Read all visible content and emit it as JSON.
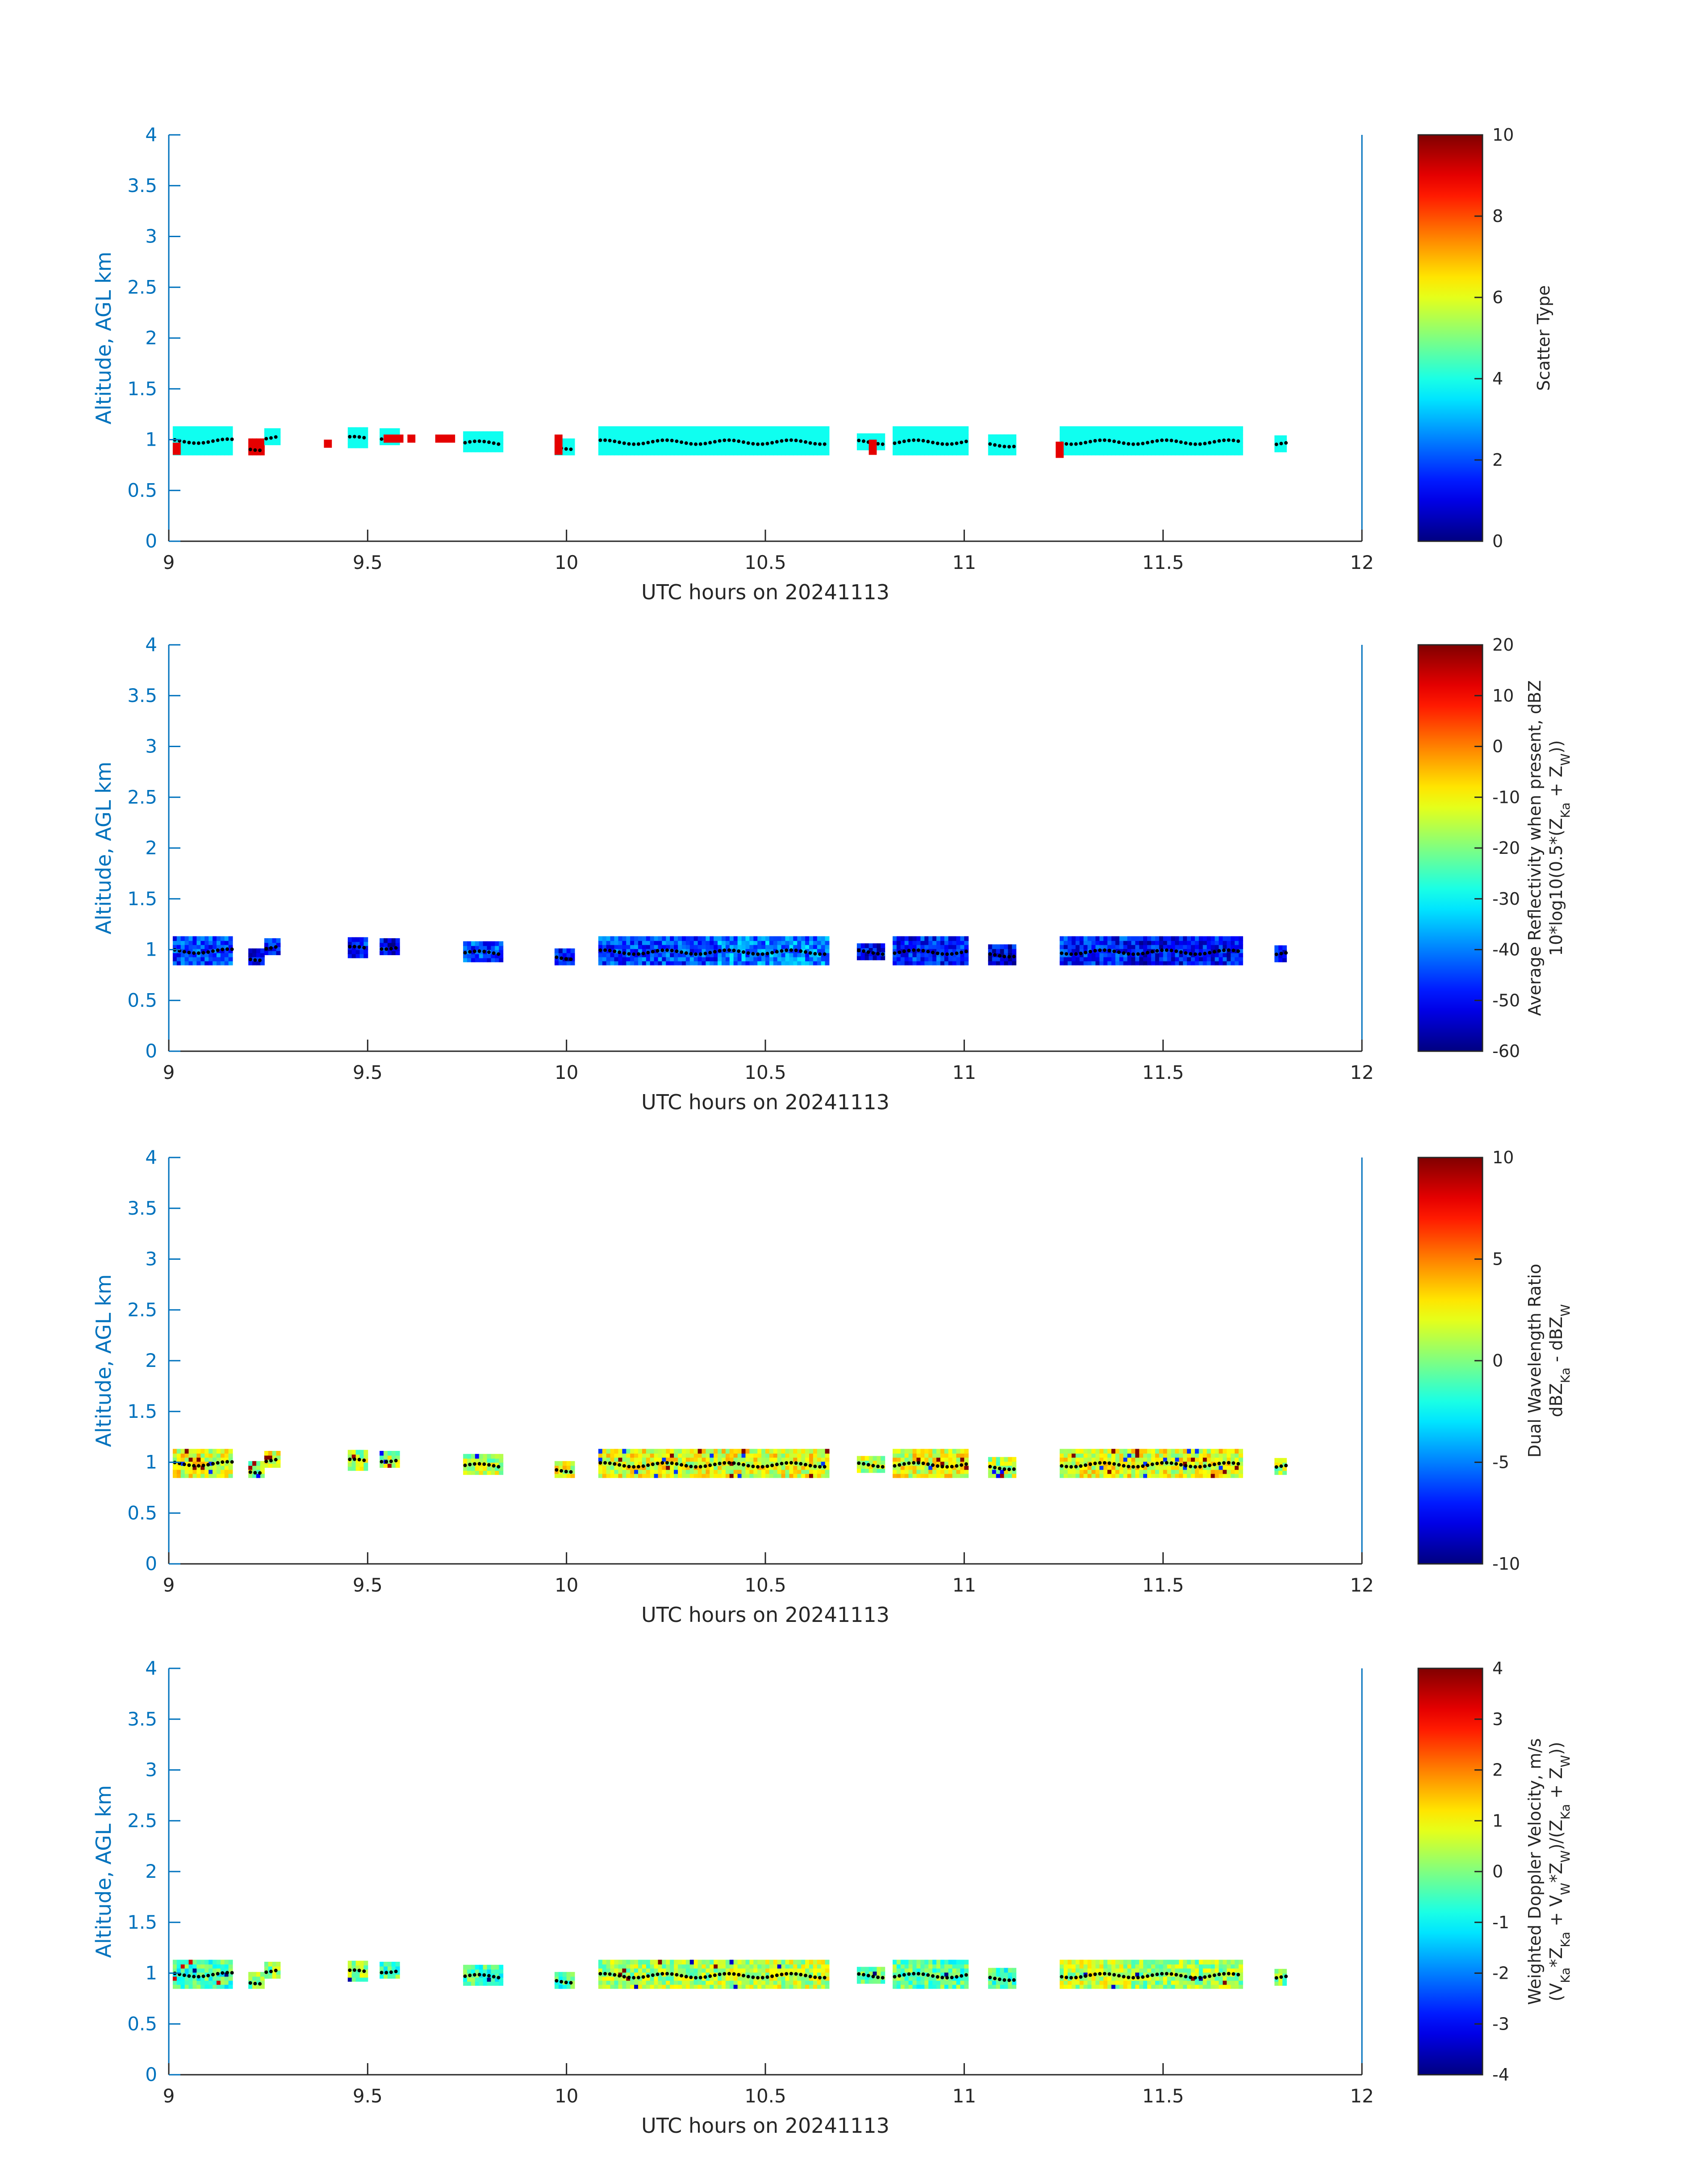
{
  "chart_data": [
    {
      "type": "heatmap",
      "xlabel": "UTC hours on 20241113",
      "ylabel": "Altitude, AGL km",
      "xlim": [
        9,
        12
      ],
      "ylim": [
        0,
        4
      ],
      "xticks": [
        "9",
        "9.5",
        "10",
        "10.5",
        "11",
        "11.5",
        "12"
      ],
      "yticks": [
        "0",
        "0.5",
        "1",
        "1.5",
        "2",
        "2.5",
        "3",
        "3.5",
        "4"
      ],
      "colorbar": {
        "label": [
          "Scatter Type"
        ],
        "range": [
          0,
          10
        ],
        "ticks": [
          "0",
          "2",
          "4",
          "6",
          "8",
          "10"
        ],
        "colormap": "jet"
      },
      "segments": [
        [
          9.01,
          9.16,
          0.85,
          1.12,
          3.9
        ],
        [
          9.2,
          9.24,
          0.85,
          0.98,
          9.0
        ],
        [
          9.24,
          9.28,
          0.95,
          1.1,
          3.9
        ],
        [
          9.45,
          9.5,
          0.92,
          1.1,
          3.9
        ],
        [
          9.53,
          9.58,
          0.95,
          1.1,
          3.9
        ],
        [
          9.74,
          9.84,
          0.88,
          1.05,
          3.9
        ],
        [
          9.97,
          10.02,
          0.85,
          1.0,
          3.9
        ],
        [
          10.08,
          10.38,
          0.85,
          1.1,
          3.9
        ],
        [
          10.38,
          10.66,
          0.85,
          1.1,
          3.9
        ],
        [
          10.73,
          10.8,
          0.9,
          1.05,
          3.9
        ],
        [
          10.82,
          11.01,
          0.85,
          1.1,
          3.9
        ],
        [
          11.06,
          11.13,
          0.85,
          1.05,
          3.9
        ],
        [
          11.24,
          11.42,
          0.85,
          1.1,
          3.9
        ],
        [
          11.42,
          11.7,
          0.85,
          1.1,
          3.9
        ],
        [
          11.78,
          11.81,
          0.88,
          1.02,
          3.9
        ]
      ]
    },
    {
      "type": "heatmap",
      "xlabel": "UTC hours on 20241113",
      "ylabel": "Altitude, AGL km",
      "xlim": [
        9,
        12
      ],
      "ylim": [
        0,
        4
      ],
      "xticks": [
        "9",
        "9.5",
        "10",
        "10.5",
        "11",
        "11.5",
        "12"
      ],
      "yticks": [
        "0",
        "0.5",
        "1",
        "1.5",
        "2",
        "2.5",
        "3",
        "3.5",
        "4"
      ],
      "colorbar": {
        "label": [
          "Average Reflectivity when present, dBZ",
          "10*log10(0.5*(Z",
          "Ka",
          " + Z",
          "W",
          "))"
        ],
        "range": [
          -60,
          20
        ],
        "ticks": [
          "-60",
          "-50",
          "-40",
          "-30",
          "-20",
          "-10",
          "0",
          "10",
          "20"
        ],
        "colormap": "jet"
      },
      "segments": [
        [
          9.01,
          9.16,
          0.85,
          1.12,
          -45
        ],
        [
          9.2,
          9.24,
          0.85,
          0.98,
          -52
        ],
        [
          9.24,
          9.28,
          0.95,
          1.1,
          -50
        ],
        [
          9.45,
          9.5,
          0.92,
          1.1,
          -48
        ],
        [
          9.53,
          9.58,
          0.95,
          1.1,
          -52
        ],
        [
          9.74,
          9.84,
          0.88,
          1.05,
          -45
        ],
        [
          9.97,
          10.02,
          0.85,
          1.0,
          -50
        ],
        [
          10.08,
          10.38,
          0.85,
          1.1,
          -45
        ],
        [
          10.38,
          10.66,
          0.85,
          1.1,
          -40
        ],
        [
          10.73,
          10.8,
          0.9,
          1.05,
          -50
        ],
        [
          10.82,
          11.01,
          0.85,
          1.1,
          -48
        ],
        [
          11.06,
          11.13,
          0.85,
          1.05,
          -52
        ],
        [
          11.24,
          11.42,
          0.85,
          1.1,
          -48
        ],
        [
          11.42,
          11.7,
          0.85,
          1.1,
          -50
        ],
        [
          11.78,
          11.81,
          0.88,
          1.02,
          -52
        ]
      ]
    },
    {
      "type": "heatmap",
      "xlabel": "UTC hours on 20241113",
      "ylabel": "Altitude, AGL km",
      "xlim": [
        9,
        12
      ],
      "ylim": [
        0,
        4
      ],
      "xticks": [
        "9",
        "9.5",
        "10",
        "10.5",
        "11",
        "11.5",
        "12"
      ],
      "yticks": [
        "0",
        "0.5",
        "1",
        "1.5",
        "2",
        "2.5",
        "3",
        "3.5",
        "4"
      ],
      "colorbar": {
        "label": [
          "Dual Wavelength Ratio",
          "dBZ",
          "Ka",
          " - dBZ",
          "W"
        ],
        "range": [
          -10,
          10
        ],
        "ticks": [
          "-10",
          "-5",
          "0",
          "5",
          "10"
        ],
        "colormap": "jet"
      },
      "segments": [
        [
          9.01,
          9.16,
          0.85,
          1.12,
          2
        ],
        [
          9.2,
          9.24,
          0.85,
          0.98,
          1
        ],
        [
          9.24,
          9.28,
          0.95,
          1.1,
          2
        ],
        [
          9.45,
          9.5,
          0.92,
          1.1,
          1
        ],
        [
          9.53,
          9.58,
          0.95,
          1.1,
          1
        ],
        [
          9.74,
          9.84,
          0.88,
          1.05,
          1
        ],
        [
          9.97,
          10.02,
          0.85,
          1.0,
          2
        ],
        [
          10.08,
          10.38,
          0.85,
          1.1,
          2
        ],
        [
          10.38,
          10.66,
          0.85,
          1.1,
          2
        ],
        [
          10.73,
          10.8,
          0.9,
          1.05,
          1
        ],
        [
          10.82,
          11.01,
          0.85,
          1.1,
          2
        ],
        [
          11.06,
          11.13,
          0.85,
          1.05,
          1
        ],
        [
          11.24,
          11.42,
          0.85,
          1.1,
          2
        ],
        [
          11.42,
          11.7,
          0.85,
          1.1,
          2
        ],
        [
          11.78,
          11.81,
          0.88,
          1.02,
          1
        ]
      ]
    },
    {
      "type": "heatmap",
      "xlabel": "UTC hours on 20241113",
      "ylabel": "Altitude, AGL km",
      "xlim": [
        9,
        12
      ],
      "ylim": [
        0,
        4
      ],
      "xticks": [
        "9",
        "9.5",
        "10",
        "10.5",
        "11",
        "11.5",
        "12"
      ],
      "yticks": [
        "0",
        "0.5",
        "1",
        "1.5",
        "2",
        "2.5",
        "3",
        "3.5",
        "4"
      ],
      "colorbar": {
        "label": [
          "Weighted Doppler Velocity, m/s",
          "(V",
          "Ka",
          "*Z",
          "Ka",
          " + V",
          "W",
          "*Z",
          "W",
          ")/(Z",
          "Ka",
          " + Z",
          "W",
          "))"
        ],
        "range": [
          -4,
          4
        ],
        "ticks": [
          "-4",
          "-3",
          "-2",
          "-1",
          "0",
          "1",
          "2",
          "3",
          "4"
        ],
        "colormap": "jet"
      },
      "segments": [
        [
          9.01,
          9.16,
          0.85,
          1.12,
          -0.5
        ],
        [
          9.2,
          9.24,
          0.85,
          0.98,
          0.0
        ],
        [
          9.24,
          9.28,
          0.95,
          1.1,
          0.0
        ],
        [
          9.45,
          9.5,
          0.92,
          1.1,
          0.2
        ],
        [
          9.53,
          9.58,
          0.95,
          1.1,
          -0.4
        ],
        [
          9.74,
          9.84,
          0.88,
          1.05,
          -0.5
        ],
        [
          9.97,
          10.02,
          0.85,
          1.0,
          -0.5
        ],
        [
          10.08,
          10.38,
          0.85,
          1.1,
          0.3
        ],
        [
          10.38,
          10.66,
          0.85,
          1.1,
          0.5
        ],
        [
          10.73,
          10.8,
          0.9,
          1.05,
          -0.3
        ],
        [
          10.82,
          11.01,
          0.85,
          1.1,
          -0.3
        ],
        [
          11.06,
          11.13,
          0.85,
          1.05,
          -0.5
        ],
        [
          11.24,
          11.42,
          0.85,
          1.1,
          0.5
        ],
        [
          11.42,
          11.7,
          0.85,
          1.1,
          0.2
        ],
        [
          11.78,
          11.81,
          0.88,
          1.02,
          0.0
        ]
      ]
    }
  ]
}
